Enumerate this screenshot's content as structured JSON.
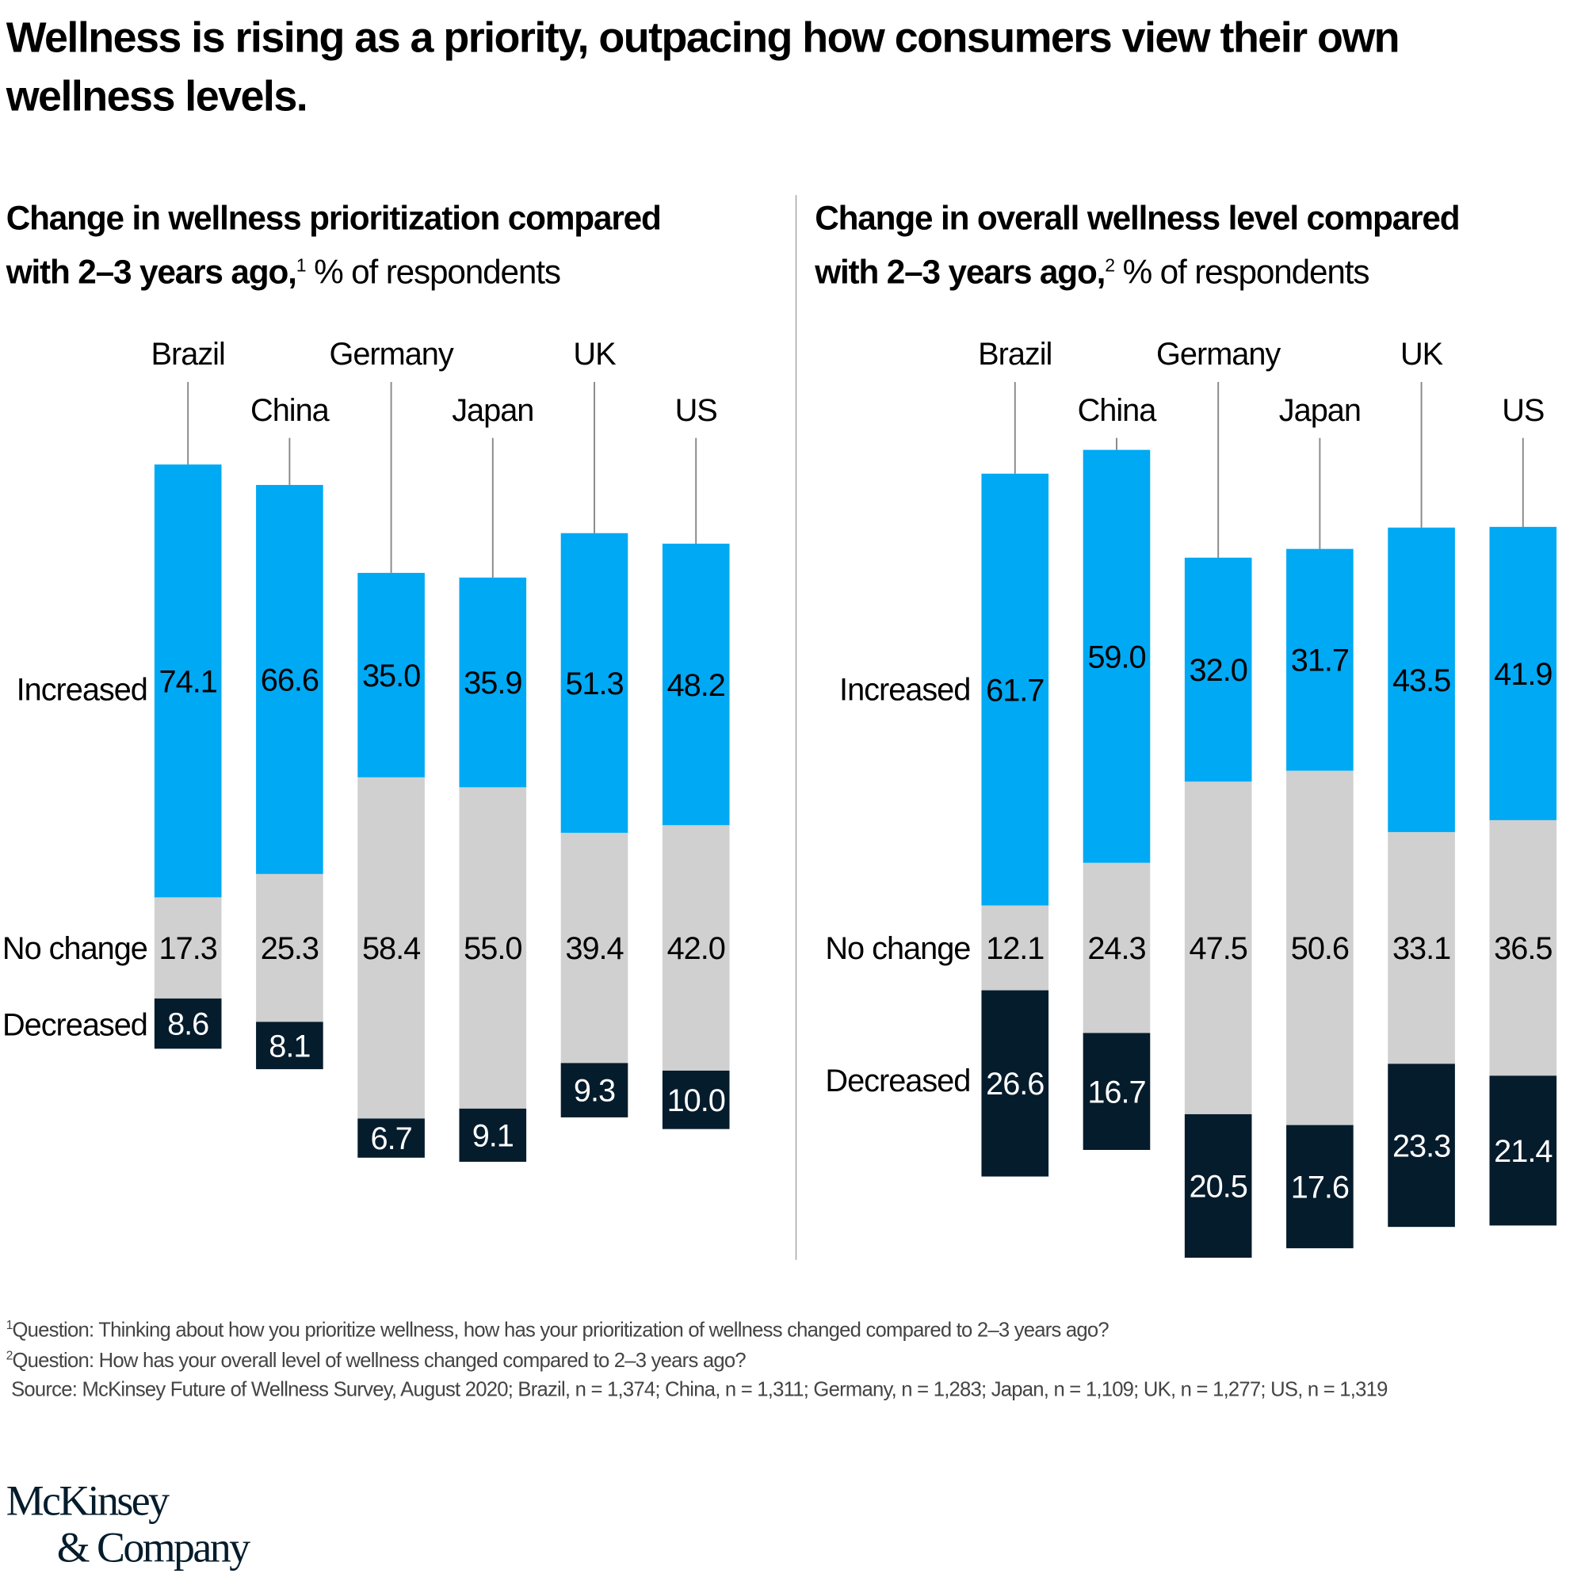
{
  "title": "Wellness is rising as a priority, outpacing how consumers view their own wellness levels.",
  "colors": {
    "increased": "#00a9f4",
    "no_change": "#d0d0d0",
    "decreased": "#051c2c"
  },
  "chart_data": [
    {
      "type": "bar",
      "stacked": true,
      "title_bold": "Change in wellness prioritization compared with 2–3 years ago,",
      "footnote_ref": "1",
      "title_unit": "% of respondents",
      "categories": [
        "Brazil",
        "China",
        "Germany",
        "Japan",
        "UK",
        "US"
      ],
      "series": [
        {
          "name": "Increased",
          "values": [
            74.1,
            66.6,
            35.0,
            35.9,
            51.3,
            48.2
          ]
        },
        {
          "name": "No change",
          "values": [
            17.3,
            25.3,
            58.4,
            55.0,
            39.4,
            42.0
          ]
        },
        {
          "name": "Decreased",
          "values": [
            8.6,
            8.1,
            6.7,
            9.1,
            9.3,
            10.0
          ]
        }
      ]
    },
    {
      "type": "bar",
      "stacked": true,
      "title_bold": "Change in overall wellness level compared with 2–3 years ago,",
      "footnote_ref": "2",
      "title_unit": "% of respondents",
      "categories": [
        "Brazil",
        "China",
        "Germany",
        "Japan",
        "UK",
        "US"
      ],
      "series": [
        {
          "name": "Increased",
          "values": [
            61.7,
            59.0,
            32.0,
            31.7,
            43.5,
            41.9
          ]
        },
        {
          "name": "No change",
          "values": [
            12.1,
            24.3,
            47.5,
            50.6,
            33.1,
            36.5
          ]
        },
        {
          "name": "Decreased",
          "values": [
            26.6,
            16.7,
            20.5,
            17.6,
            23.3,
            21.4
          ]
        }
      ]
    }
  ],
  "footnotes": [
    {
      "mark": "1",
      "text": "Question: Thinking about how you prioritize wellness, how has your prioritization of wellness changed compared to 2–3 years ago?"
    },
    {
      "mark": "2",
      "text": "Question: How has your overall level of wellness changed compared to 2–3 years ago?"
    },
    {
      "mark": "",
      "text": "Source: McKinsey Future of Wellness Survey, August 2020; Brazil, n = 1,374; China, n = 1,311; Germany, n = 1,283; Japan, n = 1,109; UK, n = 1,277; US, n = 1,319"
    }
  ],
  "logo": {
    "line1": "McKinsey",
    "line2": "& Company"
  }
}
